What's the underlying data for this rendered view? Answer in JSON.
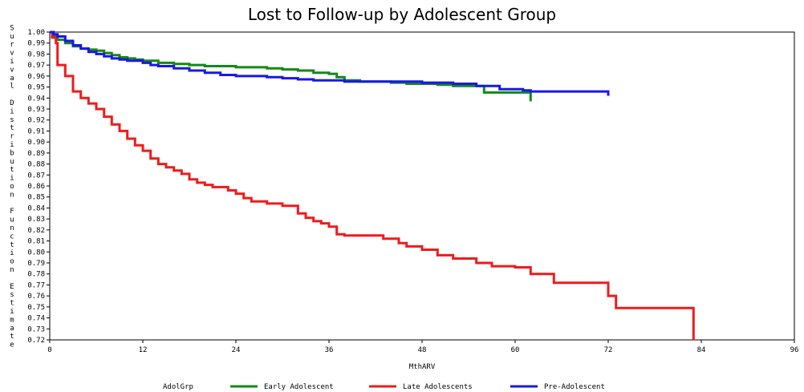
{
  "chart_data": {
    "type": "line",
    "title": "Lost to Follow-up by Adolescent Group",
    "xlabel": "MthARV",
    "ylabel": "Survival Distribution Function Estimate",
    "xlim": [
      0,
      96
    ],
    "ylim": [
      0.72,
      1.0
    ],
    "xticks": [
      0,
      12,
      24,
      36,
      48,
      60,
      72,
      84,
      96
    ],
    "yticks": [
      1.0,
      0.99,
      0.98,
      0.97,
      0.96,
      0.95,
      0.94,
      0.93,
      0.92,
      0.91,
      0.9,
      0.89,
      0.88,
      0.87,
      0.86,
      0.85,
      0.84,
      0.83,
      0.82,
      0.81,
      0.8,
      0.79,
      0.78,
      0.77,
      0.76,
      0.75,
      0.74,
      0.73,
      0.72
    ],
    "legend": {
      "title": "AdolGrp",
      "placement": "bottom"
    },
    "step": true,
    "series": [
      {
        "name": "Early Adolescent",
        "color": "#138a13",
        "x": [
          0,
          0.5,
          1,
          2,
          3,
          4,
          5,
          6,
          7,
          8,
          9,
          10,
          11,
          12,
          14,
          16,
          18,
          20,
          22,
          24,
          26,
          28,
          30,
          32,
          34,
          36,
          37,
          38,
          40,
          42,
          44,
          46,
          48,
          50,
          52,
          54,
          56,
          62,
          62
        ],
        "y": [
          1.0,
          0.997,
          0.993,
          0.99,
          0.987,
          0.985,
          0.984,
          0.983,
          0.981,
          0.979,
          0.977,
          0.976,
          0.975,
          0.974,
          0.972,
          0.971,
          0.97,
          0.969,
          0.969,
          0.968,
          0.968,
          0.967,
          0.966,
          0.965,
          0.963,
          0.962,
          0.959,
          0.956,
          0.955,
          0.955,
          0.954,
          0.953,
          0.953,
          0.952,
          0.951,
          0.951,
          0.945,
          0.945,
          0.937
        ]
      },
      {
        "name": "Late Adolescents",
        "color": "#ee1c1c",
        "x": [
          0,
          0.3,
          0.8,
          1,
          2,
          3,
          4,
          5,
          6,
          7,
          8,
          9,
          10,
          11,
          12,
          13,
          14,
          15,
          16,
          17,
          18,
          19,
          20,
          21,
          23,
          24,
          25,
          26,
          28,
          30,
          32,
          33,
          34,
          35,
          36,
          37,
          38,
          43,
          45,
          46,
          48,
          50,
          52,
          55,
          57,
          60,
          62,
          65,
          72,
          73,
          83,
          83
        ],
        "y": [
          1.0,
          0.995,
          0.99,
          0.97,
          0.96,
          0.946,
          0.94,
          0.935,
          0.93,
          0.923,
          0.916,
          0.91,
          0.903,
          0.897,
          0.892,
          0.885,
          0.88,
          0.877,
          0.874,
          0.871,
          0.866,
          0.863,
          0.861,
          0.859,
          0.856,
          0.853,
          0.849,
          0.846,
          0.844,
          0.842,
          0.835,
          0.831,
          0.828,
          0.826,
          0.823,
          0.816,
          0.815,
          0.812,
          0.808,
          0.805,
          0.802,
          0.797,
          0.794,
          0.79,
          0.787,
          0.786,
          0.78,
          0.772,
          0.76,
          0.749,
          0.749,
          0.72
        ]
      },
      {
        "name": "Pre-Adolescent",
        "color": "#1818e8",
        "x": [
          0,
          0.5,
          1,
          2,
          3,
          4,
          5,
          6,
          7,
          8,
          9,
          10,
          12,
          13,
          14,
          16,
          18,
          20,
          22,
          24,
          28,
          30,
          32,
          34,
          36,
          38,
          40,
          44,
          48,
          52,
          55,
          58,
          61,
          62,
          72,
          72
        ],
        "y": [
          1.0,
          0.998,
          0.996,
          0.992,
          0.988,
          0.985,
          0.982,
          0.98,
          0.978,
          0.976,
          0.975,
          0.974,
          0.972,
          0.97,
          0.969,
          0.967,
          0.965,
          0.963,
          0.961,
          0.96,
          0.959,
          0.958,
          0.957,
          0.956,
          0.956,
          0.955,
          0.955,
          0.955,
          0.954,
          0.953,
          0.951,
          0.948,
          0.947,
          0.946,
          0.946,
          0.942
        ]
      }
    ]
  }
}
